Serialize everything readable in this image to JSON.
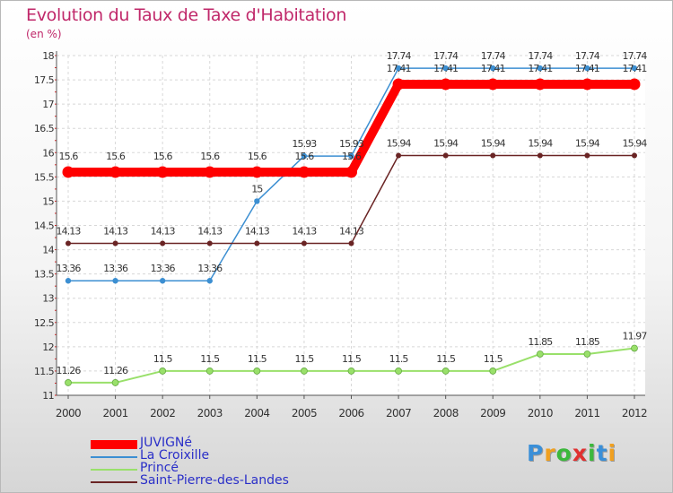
{
  "chart_data": {
    "type": "line",
    "title": "Evolution du Taux de Taxe d'Habitation",
    "ylabel": "(en %)",
    "xlabel": "",
    "ylim": [
      11,
      18
    ],
    "yticks": [
      "11",
      "11.5",
      "12",
      "12.5",
      "13",
      "13.5",
      "14",
      "14.5",
      "15",
      "15.5",
      "16",
      "16.5",
      "17",
      "17.5",
      "18"
    ],
    "categories": [
      "2000",
      "2001",
      "2002",
      "2003",
      "2004",
      "2005",
      "2006",
      "2007",
      "2008",
      "2009",
      "2010",
      "2011",
      "2012"
    ],
    "series": [
      {
        "name": "JUVIGNé",
        "color": "#ff0000",
        "values": [
          15.6,
          15.6,
          15.6,
          15.6,
          15.6,
          15.6,
          15.6,
          17.41,
          17.41,
          17.41,
          17.41,
          17.41,
          17.41
        ],
        "labels": [
          "15.6",
          "15.6",
          "15.6",
          "15.6",
          "15.6",
          "15.6",
          "15.6",
          "17.41",
          "17.41",
          "17.41",
          "17.41",
          "17.41",
          "17.41"
        ]
      },
      {
        "name": "La Croixille",
        "color": "#3c8fd2",
        "values": [
          13.36,
          13.36,
          13.36,
          13.36,
          15,
          15.93,
          15.93,
          17.74,
          17.74,
          17.74,
          17.74,
          17.74,
          17.74
        ],
        "labels": [
          "13.36",
          "13.36",
          "13.36",
          "13.36",
          "15",
          "15.93",
          "15.93",
          "17.74",
          "17.74",
          "17.74",
          "17.74",
          "17.74",
          "17.74"
        ]
      },
      {
        "name": "Princé",
        "color": "#99e06a",
        "values": [
          11.26,
          11.26,
          11.5,
          11.5,
          11.5,
          11.5,
          11.5,
          11.5,
          11.5,
          11.5,
          11.85,
          11.85,
          11.97
        ],
        "labels": [
          "11.26",
          "11.26",
          "11.5",
          "11.5",
          "11.5",
          "11.5",
          "11.5",
          "11.5",
          "11.5",
          "11.5",
          "11.85",
          "11.85",
          "11.97"
        ]
      },
      {
        "name": "Saint-Pierre-des-Landes",
        "color": "#6a2424",
        "values": [
          14.13,
          14.13,
          14.13,
          14.13,
          14.13,
          14.13,
          14.13,
          15.94,
          15.94,
          15.94,
          15.94,
          15.94,
          15.94
        ],
        "labels": [
          "14.13",
          "14.13",
          "14.13",
          "14.13",
          "14.13",
          "14.13",
          "14.13",
          "15.94",
          "15.94",
          "15.94",
          "15.94",
          "15.94",
          "15.94"
        ]
      }
    ]
  },
  "logo": {
    "letters": [
      "P",
      "r",
      "o",
      "x",
      "i",
      "t",
      "i"
    ],
    "colors": [
      "#3a8fd8",
      "#f0a020",
      "#3cb83c",
      "#e03030",
      "#3cb83c",
      "#3a8fd8",
      "#f0a020"
    ]
  }
}
